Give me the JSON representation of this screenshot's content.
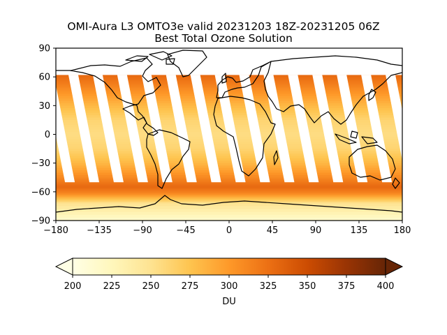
{
  "chart_data": {
    "type": "heatmap",
    "title": "OMI-Aura L3 OMTO3e valid 20231203 18Z-20231205 06Z",
    "subtitle": "Best Total Ozone Solution",
    "map_projection": "PlateCarree (longitude / latitude)",
    "x_ticks": [
      -180,
      -135,
      -90,
      -45,
      0,
      45,
      90,
      135,
      180
    ],
    "y_ticks": [
      90,
      60,
      30,
      0,
      -30,
      -60,
      -90
    ],
    "xlim": [
      -180,
      180
    ],
    "ylim": [
      -90,
      90
    ],
    "coastlines": true,
    "colormap": "YlOrBr",
    "colorbar": {
      "orientation": "horizontal",
      "location": "bottom",
      "extend": "both",
      "label": "DU",
      "range": [
        200,
        400
      ],
      "ticks": [
        200,
        225,
        250,
        275,
        300,
        325,
        350,
        375,
        400
      ],
      "colors": [
        "#ffffe5",
        "#fff7bc",
        "#fee391",
        "#fec44f",
        "#fe9929",
        "#ec7014",
        "#cc4c02",
        "#993404",
        "#662506"
      ]
    },
    "data_coverage": {
      "lat_range": [
        -90,
        62
      ],
      "missing": "diagonal orbit-gap swaths between ~-50 and ~62 latitude"
    },
    "zonal_profile": [
      {
        "lat": 62,
        "value": 330
      },
      {
        "lat": 55,
        "value": 320
      },
      {
        "lat": 45,
        "value": 305
      },
      {
        "lat": 30,
        "value": 282
      },
      {
        "lat": 15,
        "value": 262
      },
      {
        "lat": 0,
        "value": 255
      },
      {
        "lat": -15,
        "value": 262
      },
      {
        "lat": -30,
        "value": 282
      },
      {
        "lat": -45,
        "value": 310
      },
      {
        "lat": -55,
        "value": 330
      },
      {
        "lat": -62,
        "value": 310
      },
      {
        "lat": -72,
        "value": 250
      },
      {
        "lat": -90,
        "value": 215
      }
    ]
  }
}
